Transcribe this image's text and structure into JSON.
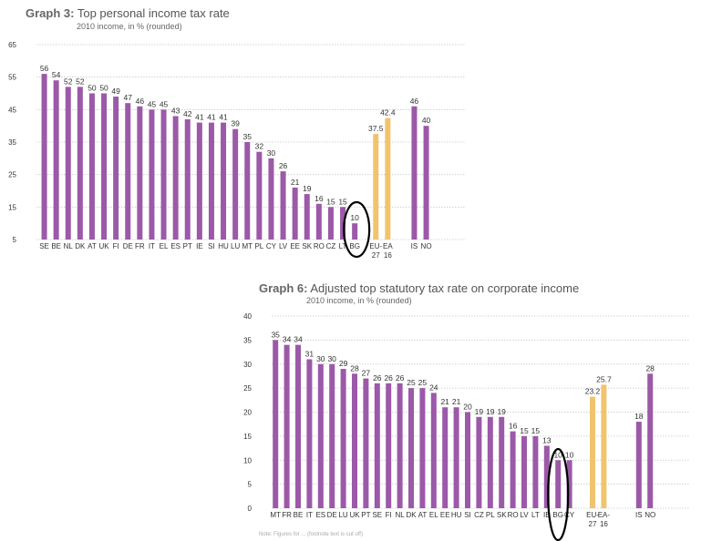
{
  "colors": {
    "bar_country": "#9b59a8",
    "bar_aggregate": "#f0c46e",
    "grid": "#c8c8c8",
    "highlight_ellipse": "#000000",
    "axis_text": "#333333"
  },
  "chart1": {
    "title_number": "Graph 3:",
    "title_text": "Top personal income tax rate",
    "subtitle": "2010 income, in % (rounded)"
  },
  "chart2": {
    "title_number": "Graph 6:",
    "title_text": "Adjusted top statutory tax rate on corporate income",
    "subtitle": "2010 income, in % (rounded)",
    "footnote": "Note: Figures for ... (footnote text is cut off)"
  },
  "chart_data": [
    {
      "type": "bar",
      "title": "Graph 3: Top personal income tax rate",
      "subtitle": "2010 income, in % (rounded)",
      "xlabel": "",
      "ylabel": "",
      "ylim": [
        5,
        65
      ],
      "yticks": [
        5,
        15,
        25,
        35,
        45,
        55,
        65
      ],
      "grid": "horizontal dotted",
      "categories": [
        "SE",
        "BE",
        "NL",
        "DK",
        "AT",
        "UK",
        "FI",
        "DE",
        "FR",
        "IT",
        "EL",
        "ES",
        "PT",
        "IE",
        "SI",
        "HU",
        "LU",
        "MT",
        "PL",
        "CY",
        "LV",
        "EE",
        "SK",
        "RO",
        "CZ",
        "LT",
        "BG",
        "EU-27",
        "EA-16",
        "IS",
        "NO"
      ],
      "tick_labels": [
        "SE",
        "BE",
        "NL",
        "DK",
        "AT",
        "UK",
        "FI",
        "DE",
        "FR",
        "IT",
        "EL",
        "ES",
        "PT",
        "IE",
        "SI",
        "HU",
        "LU",
        "MT",
        "PL",
        "CY",
        "LV",
        "EE",
        "SK",
        "RO",
        "CZ",
        "LT",
        "BG",
        [
          "EU-",
          "27"
        ],
        [
          "EA",
          "16"
        ],
        "IS",
        "NO"
      ],
      "values": [
        56,
        54,
        52,
        52,
        50,
        50,
        49,
        47,
        46,
        45,
        45,
        43,
        42,
        41,
        41,
        41,
        39,
        35,
        32,
        30,
        26,
        21,
        19,
        16,
        15,
        15,
        10,
        37.5,
        42.4,
        46,
        40
      ],
      "value_labels": [
        "56",
        "54",
        "52",
        "52",
        "50",
        "50",
        "49",
        "47",
        "46",
        "45",
        "45",
        "43",
        "42",
        "41",
        "41",
        "41",
        "39",
        "35",
        "32",
        "30",
        "26",
        "21",
        "19",
        "16",
        "15",
        "15",
        "10",
        "37.5",
        "42.4",
        "46",
        "40"
      ],
      "groups": [
        "country",
        "country",
        "country",
        "country",
        "country",
        "country",
        "country",
        "country",
        "country",
        "country",
        "country",
        "country",
        "country",
        "country",
        "country",
        "country",
        "country",
        "country",
        "country",
        "country",
        "country",
        "country",
        "country",
        "country",
        "country",
        "country",
        "country",
        "aggregate",
        "aggregate",
        "country",
        "country"
      ],
      "highlight": "BG"
    },
    {
      "type": "bar",
      "title": "Graph 6: Adjusted top statutory tax rate on corporate income",
      "subtitle": "2010 income, in % (rounded)",
      "xlabel": "",
      "ylabel": "",
      "ylim": [
        0,
        40
      ],
      "yticks": [
        0,
        5,
        10,
        15,
        20,
        25,
        30,
        35,
        40
      ],
      "grid": "horizontal dotted",
      "categories": [
        "MT",
        "FR",
        "BE",
        "IT",
        "ES",
        "DE",
        "LU",
        "UK",
        "PT",
        "SE",
        "FI",
        "NL",
        "DK",
        "AT",
        "EL",
        "EE",
        "HU",
        "SI",
        "CZ",
        "PL",
        "SK",
        "RO",
        "LV",
        "LT",
        "IE",
        "BG",
        "CY",
        "EU-27",
        "EA-16",
        "IS",
        "NO"
      ],
      "tick_labels": [
        "MT",
        "FR",
        "BE",
        "IT",
        "ES",
        "DE",
        "LU",
        "UK",
        "PT",
        "SE",
        "FI",
        "NL",
        "DK",
        "AT",
        "EL",
        "EE",
        "HU",
        "SI",
        "CZ",
        "PL",
        "SK",
        "RO",
        "LV",
        "LT",
        "IE",
        "BG",
        "CY",
        [
          "EU-",
          "27"
        ],
        [
          "EA-",
          "16"
        ],
        "IS",
        "NO"
      ],
      "values": [
        35,
        34,
        34,
        31,
        30,
        30,
        29,
        28,
        27,
        26,
        26,
        26,
        25,
        25,
        24,
        21,
        21,
        20,
        19,
        19,
        19,
        16,
        15,
        15,
        13,
        10,
        10,
        23.2,
        25.7,
        18,
        28
      ],
      "value_labels": [
        "35",
        "34",
        "34",
        "31",
        "30",
        "30",
        "29",
        "28",
        "27",
        "26",
        "26",
        "26",
        "25",
        "25",
        "24",
        "21",
        "21",
        "20",
        "19",
        "19",
        "19",
        "16",
        "15",
        "15",
        "13",
        "10",
        "10",
        "23.2",
        "25.7",
        "18",
        "28"
      ],
      "groups": [
        "country",
        "country",
        "country",
        "country",
        "country",
        "country",
        "country",
        "country",
        "country",
        "country",
        "country",
        "country",
        "country",
        "country",
        "country",
        "country",
        "country",
        "country",
        "country",
        "country",
        "country",
        "country",
        "country",
        "country",
        "country",
        "country",
        "country",
        "aggregate",
        "aggregate",
        "country",
        "country"
      ],
      "highlight": "BG"
    }
  ]
}
